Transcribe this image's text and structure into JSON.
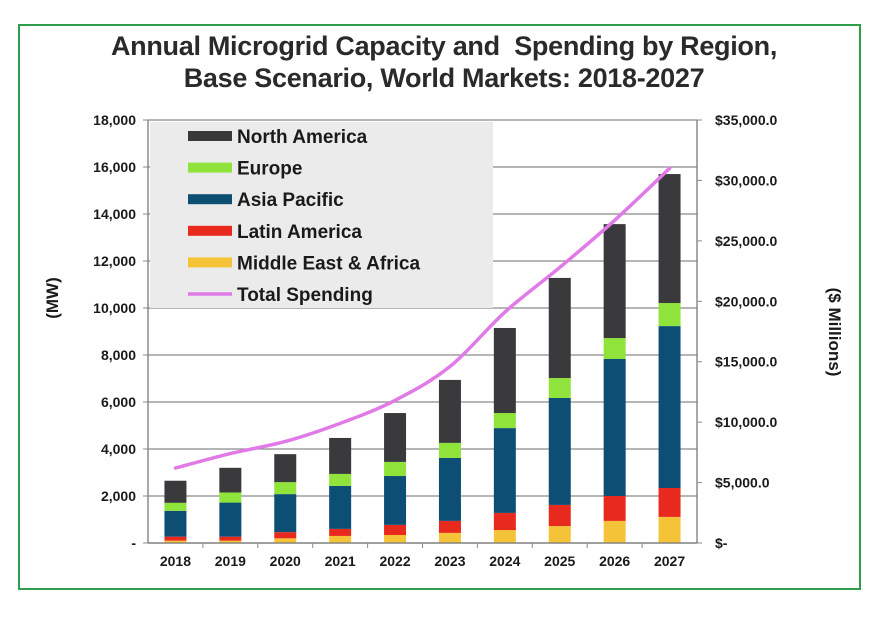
{
  "chart_data": {
    "type": "bar",
    "stacked": true,
    "title_lines": [
      "Annual Microgrid Capacity and  Spending by Region,",
      "Base Scenario, World Markets: 2018-2027"
    ],
    "xlabel": "",
    "ylabel": "(MW)",
    "y2label": "($ Millions)",
    "categories": [
      "2018",
      "2019",
      "2020",
      "2021",
      "2022",
      "2023",
      "2024",
      "2025",
      "2026",
      "2027"
    ],
    "ylim": [
      0,
      18000
    ],
    "y2lim": [
      0,
      35000
    ],
    "yticks": [
      "-",
      "2,000",
      "4,000",
      "6,000",
      "8,000",
      "10,000",
      "12,000",
      "14,000",
      "16,000",
      "18,000"
    ],
    "y2ticks": [
      "$-",
      "$5,000.0",
      "$10,000.0",
      "$15,000.0",
      "$20,000.0",
      "$25,000.0",
      "$30,000.0",
      "$35,000.0"
    ],
    "grid": true,
    "legend_position": "top-left",
    "series": [
      {
        "name": "Middle East & Africa",
        "color": "#f5c338",
        "axis": "left",
        "kind": "bar",
        "values": [
          100,
          100,
          200,
          300,
          340,
          430,
          550,
          720,
          940,
          1110
        ]
      },
      {
        "name": "Latin America",
        "color": "#e82a1e",
        "axis": "left",
        "kind": "bar",
        "values": [
          170,
          170,
          260,
          300,
          430,
          510,
          730,
          900,
          1060,
          1230
        ]
      },
      {
        "name": "Asia Pacific",
        "color": "#0d4f74",
        "axis": "left",
        "kind": "bar",
        "values": [
          1100,
          1450,
          1620,
          1830,
          2080,
          2680,
          3610,
          4550,
          5830,
          6890
        ]
      },
      {
        "name": "Europe",
        "color": "#8fe33a",
        "axis": "left",
        "kind": "bar",
        "values": [
          340,
          430,
          510,
          510,
          600,
          640,
          640,
          850,
          890,
          980
        ]
      },
      {
        "name": "North America",
        "color": "#3a3a3c",
        "axis": "left",
        "kind": "bar",
        "values": [
          940,
          1050,
          1190,
          1530,
          2080,
          2680,
          3620,
          4260,
          4850,
          5490
        ]
      },
      {
        "name": "Total Spending",
        "color": "#e07ae6",
        "axis": "right",
        "kind": "line",
        "values": [
          6200,
          7400,
          8400,
          9900,
          11800,
          14600,
          19100,
          22800,
          26700,
          31000
        ]
      }
    ],
    "legend_order": [
      "North America",
      "Europe",
      "Asia Pacific",
      "Latin America",
      "Middle East & Africa",
      "Total Spending"
    ]
  }
}
